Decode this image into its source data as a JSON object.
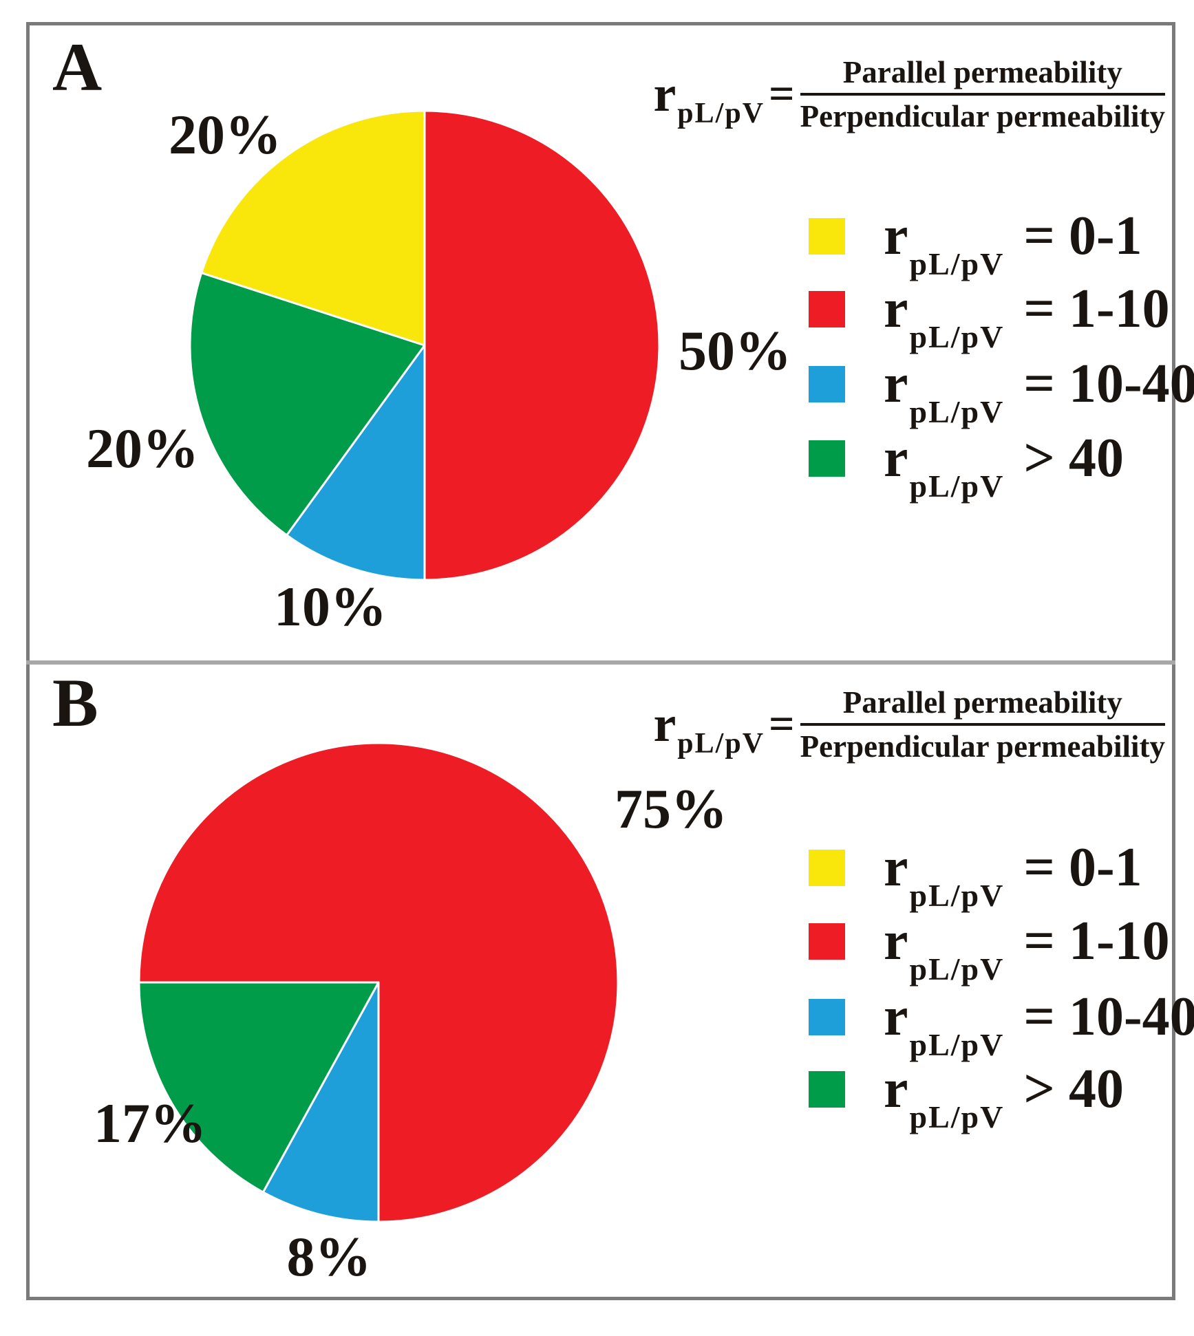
{
  "colors": {
    "red": "#EE1C25",
    "yellow": "#F9E70C",
    "blue": "#1F9FD9",
    "green": "#009C4A",
    "border_gray": "#7A7A7A",
    "divider_gray": "#A8A8A8",
    "text_black": "#1A1511"
  },
  "figure": {
    "panels": [
      {
        "label": "A",
        "formula": {
          "lhs": "r",
          "lhs_sub": "pL/pV",
          "eq": "=",
          "numerator": "Parallel permeability",
          "denominator": "Perpendicular permeability"
        },
        "legend": [
          {
            "name": "yellow",
            "color": "#F9E70C",
            "symbol": "r",
            "symbol_sub": "pL/pV",
            "range": "= 0-1"
          },
          {
            "name": "red",
            "color": "#EE1C25",
            "symbol": "r",
            "symbol_sub": "pL/pV",
            "range": "= 1-10"
          },
          {
            "name": "blue",
            "color": "#1F9FD9",
            "symbol": "r",
            "symbol_sub": "pL/pV",
            "range": "= 10-40"
          },
          {
            "name": "green",
            "color": "#009C4A",
            "symbol": "r",
            "symbol_sub": "pL/pV",
            "range": "> 40"
          }
        ]
      },
      {
        "label": "B",
        "formula": {
          "lhs": "r",
          "lhs_sub": "pL/pV",
          "eq": "=",
          "numerator": "Parallel permeability",
          "denominator": "Perpendicular permeability"
        },
        "legend": [
          {
            "name": "yellow",
            "color": "#F9E70C",
            "symbol": "r",
            "symbol_sub": "pL/pV",
            "range": "= 0-1"
          },
          {
            "name": "red",
            "color": "#EE1C25",
            "symbol": "r",
            "symbol_sub": "pL/pV",
            "range": "= 1-10"
          },
          {
            "name": "blue",
            "color": "#1F9FD9",
            "symbol": "r",
            "symbol_sub": "pL/pV",
            "range": "= 10-40"
          },
          {
            "name": "green",
            "color": "#009C4A",
            "symbol": "r",
            "symbol_sub": "pL/pV",
            "range": "> 40"
          }
        ]
      }
    ]
  },
  "chart_data": [
    {
      "type": "pie",
      "panel": "A",
      "title": "A",
      "legend_position": "right",
      "rotation_deg": 0,
      "slices": [
        {
          "category": "rpL/pV = 1-10",
          "value": 50,
          "percent_label": "50%",
          "color": "#EE1C25",
          "color_name": "red"
        },
        {
          "category": "rpL/pV = 10-40",
          "value": 10,
          "percent_label": "10%",
          "color": "#1F9FD9",
          "color_name": "blue"
        },
        {
          "category": "rpL/pV > 40",
          "value": 20,
          "percent_label": "20%",
          "color": "#009C4A",
          "color_name": "green"
        },
        {
          "category": "rpL/pV = 0-1",
          "value": 20,
          "percent_label": "20%",
          "color": "#F9E70C",
          "color_name": "yellow"
        }
      ]
    },
    {
      "type": "pie",
      "panel": "B",
      "title": "B",
      "legend_position": "right",
      "rotation_deg": 270,
      "slices": [
        {
          "category": "rpL/pV = 1-10",
          "value": 75,
          "percent_label": "75%",
          "color": "#EE1C25",
          "color_name": "red"
        },
        {
          "category": "rpL/pV = 10-40",
          "value": 8,
          "percent_label": "8%",
          "color": "#1F9FD9",
          "color_name": "blue"
        },
        {
          "category": "rpL/pV > 40",
          "value": 17,
          "percent_label": "17%",
          "color": "#009C4A",
          "color_name": "green"
        }
      ]
    }
  ]
}
